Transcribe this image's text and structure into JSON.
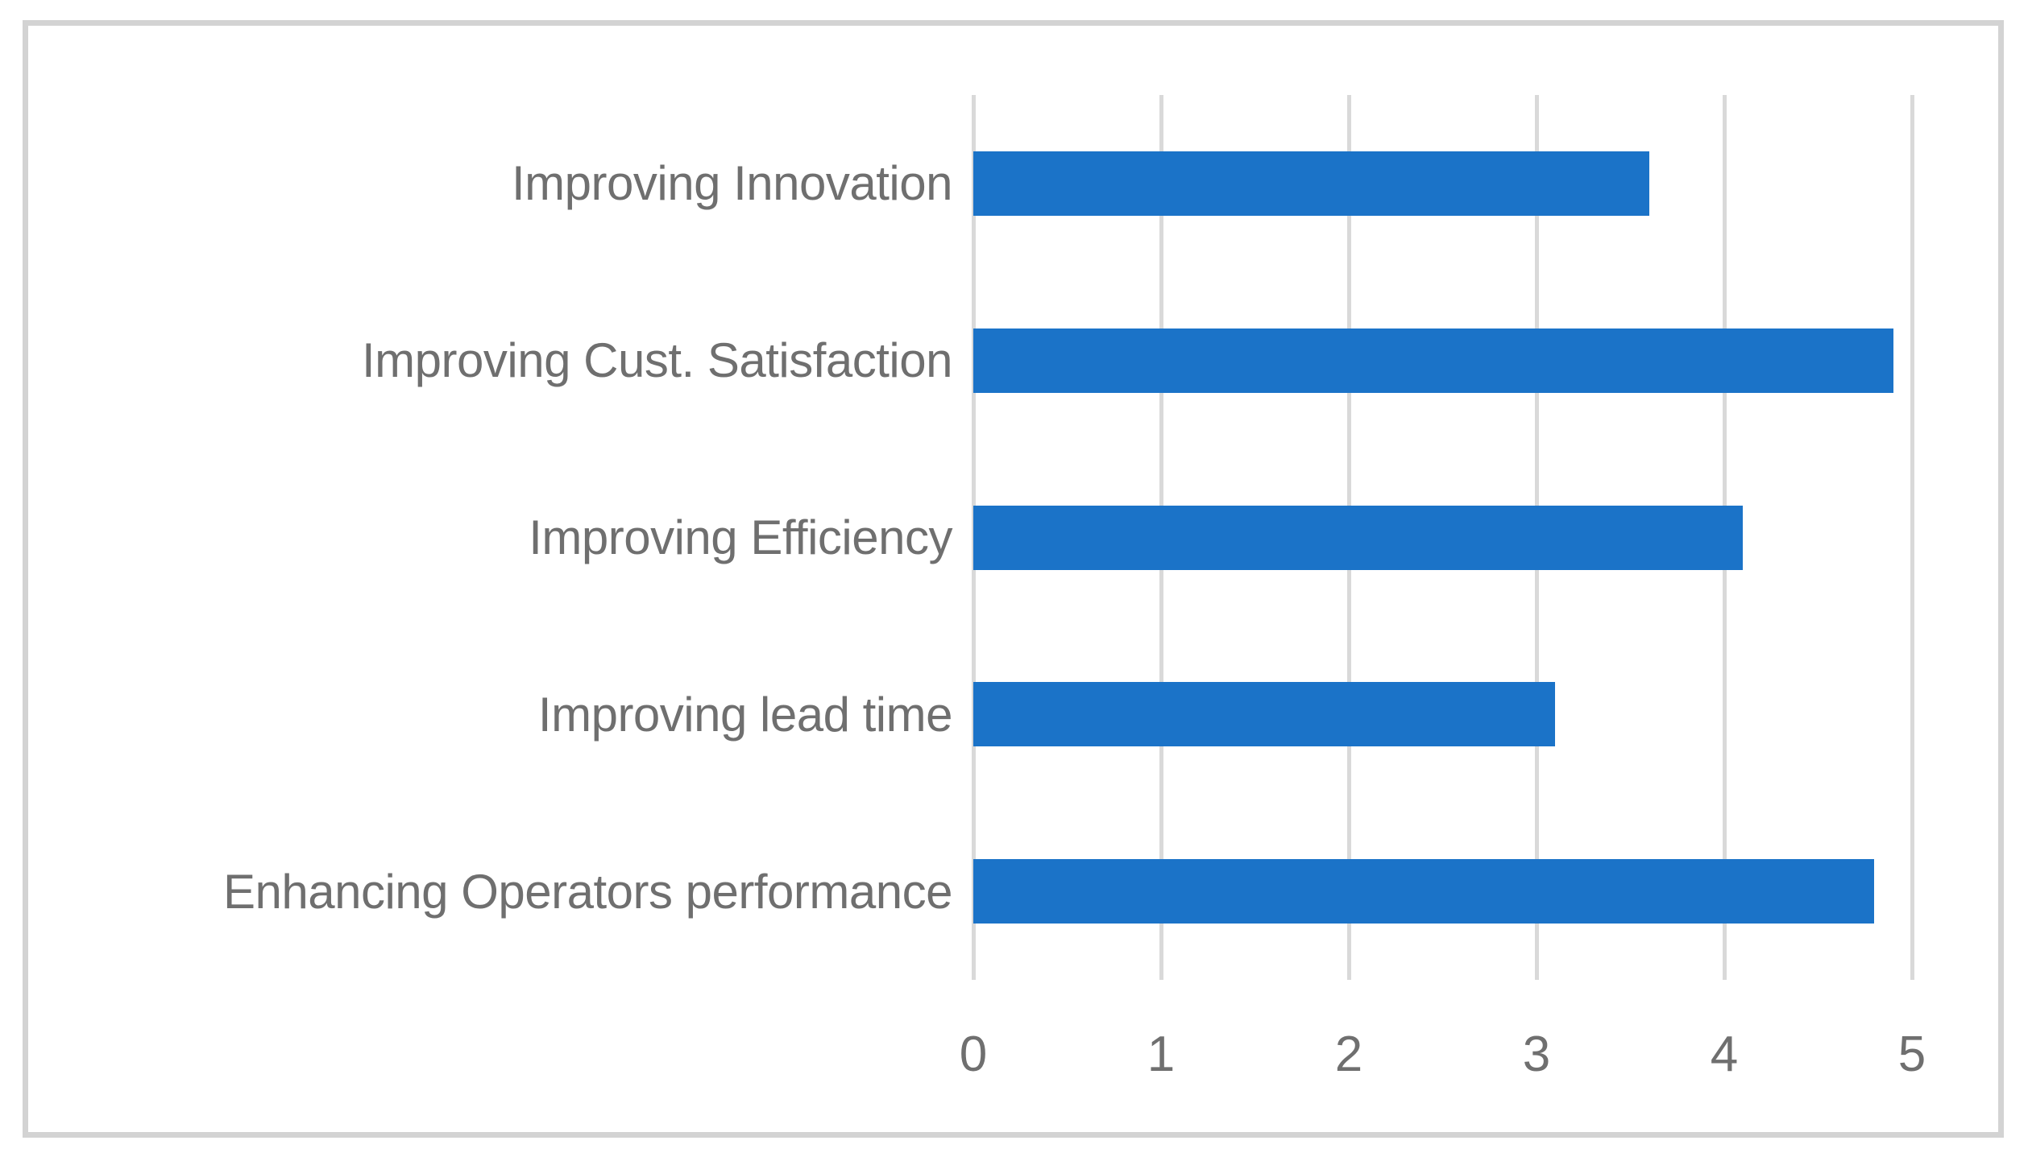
{
  "chart_data": {
    "type": "bar",
    "orientation": "horizontal",
    "title": "",
    "xlabel": "",
    "ylabel": "",
    "categories": [
      "Improving Innovation",
      "Improving Cust. Satisfaction",
      "Improving Efficiency",
      "Improving lead time",
      "Enhancing Operators performance"
    ],
    "values": [
      3.6,
      4.9,
      4.1,
      3.1,
      4.8
    ],
    "xlim": [
      0,
      5
    ],
    "xticks": [
      "0",
      "1",
      "2",
      "3",
      "4",
      "5"
    ],
    "grid": "vertical-gridlines-on",
    "legend": "none",
    "colors": {
      "bar": "#1b73c8",
      "gridline": "#d9d9d9",
      "frame_border": "#d3d3d3",
      "text": "#6f6f6f",
      "background": "#ffffff"
    }
  }
}
